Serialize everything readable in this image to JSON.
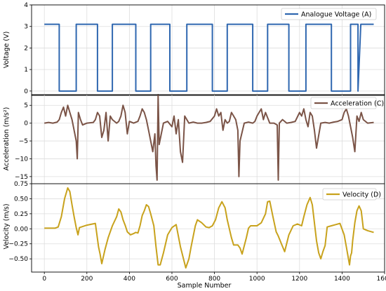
{
  "chart_data": [
    {
      "type": "line",
      "title": "",
      "ylabel": "Voltage (V)",
      "xlabel": "",
      "xlim": [
        -60,
        1600
      ],
      "ylim": [
        -0.2,
        4
      ],
      "yticks": [
        0,
        1,
        2,
        3,
        4
      ],
      "grid": true,
      "legend_position": "top-right",
      "series": [
        {
          "name": "Analogue Voltage (A)",
          "color": "#2f67b0",
          "x": [
            0,
            70,
            70,
            150,
            150,
            250,
            250,
            320,
            320,
            430,
            430,
            500,
            500,
            590,
            590,
            670,
            670,
            790,
            790,
            860,
            860,
            980,
            980,
            1050,
            1050,
            1150,
            1150,
            1230,
            1230,
            1350,
            1350,
            1440,
            1440,
            1475,
            1475,
            1488,
            1488,
            1549
          ],
          "y": [
            3.1,
            3.1,
            0,
            0,
            3.1,
            3.1,
            0,
            0,
            3.1,
            3.1,
            0,
            0,
            3.1,
            3.1,
            0,
            0,
            3.1,
            3.1,
            0,
            0,
            3.1,
            3.1,
            0,
            0,
            3.1,
            3.1,
            0,
            0,
            3.1,
            3.1,
            0,
            0,
            3.1,
            3.1,
            0,
            3.1,
            3.1,
            3.1
          ]
        }
      ]
    },
    {
      "type": "line",
      "title": "",
      "ylabel": "Acceleration (m/s²)",
      "xlabel": "",
      "xlim": [
        -60,
        1600
      ],
      "ylim": [
        -17,
        8
      ],
      "yticks": [
        5,
        0,
        -5,
        -10,
        -15
      ],
      "grid": true,
      "legend_position": "top-right",
      "series": [
        {
          "name": "Acceleration (C)",
          "color": "#7b5447",
          "x": [
            0,
            20,
            40,
            60,
            70,
            80,
            90,
            100,
            110,
            120,
            130,
            140,
            150,
            155,
            160,
            170,
            180,
            200,
            230,
            240,
            250,
            260,
            270,
            280,
            290,
            300,
            310,
            320,
            340,
            350,
            360,
            370,
            380,
            390,
            400,
            420,
            440,
            450,
            460,
            470,
            480,
            490,
            500,
            510,
            520,
            525,
            530,
            535,
            540,
            560,
            580,
            600,
            610,
            620,
            630,
            640,
            650,
            660,
            670,
            680,
            700,
            720,
            740,
            760,
            780,
            800,
            810,
            820,
            830,
            840,
            850,
            860,
            870,
            880,
            890,
            900,
            910,
            915,
            920,
            940,
            960,
            980,
            990,
            1000,
            1010,
            1020,
            1030,
            1040,
            1060,
            1080,
            1095,
            1100,
            1105,
            1120,
            1140,
            1160,
            1180,
            1200,
            1210,
            1220,
            1230,
            1240,
            1250,
            1260,
            1270,
            1280,
            1300,
            1320,
            1340,
            1360,
            1380,
            1400,
            1410,
            1420,
            1430,
            1440,
            1450,
            1460,
            1470,
            1480,
            1490,
            1500,
            1520,
            1549
          ],
          "y": [
            0,
            0.2,
            0,
            0.3,
            1,
            3,
            4.5,
            2,
            5,
            3,
            1,
            -2,
            -5,
            -10,
            3,
            1,
            -0.5,
            0,
            0.2,
            1,
            3,
            2,
            -4,
            -2,
            3,
            -5,
            2,
            1,
            0,
            0.5,
            2,
            5,
            3,
            -3,
            0.5,
            0,
            0.5,
            2,
            4,
            3,
            1,
            -2,
            -5,
            -8,
            -3,
            -12,
            -16,
            8,
            -6,
            0,
            0.5,
            -1,
            2,
            -3,
            1,
            -8,
            -11,
            2,
            1,
            0,
            0.3,
            0,
            0,
            0.2,
            0.5,
            2,
            4,
            2,
            3,
            -2,
            1,
            0,
            0.5,
            3,
            2,
            1,
            -2,
            -15,
            -5,
            0,
            0.3,
            0,
            0.5,
            2,
            3,
            4,
            1,
            3,
            0,
            0,
            -0.5,
            -16,
            0,
            1,
            0,
            0.2,
            0.5,
            3,
            2,
            4,
            1,
            -1,
            3,
            2,
            -2,
            -7,
            0,
            0.2,
            0,
            0.3,
            0.5,
            1,
            3,
            4,
            2,
            -1,
            -4,
            -8,
            2,
            0.5,
            3,
            1,
            0,
            0.2
          ]
        }
      ]
    },
    {
      "type": "line",
      "title": "",
      "ylabel": "Velocity (m/s)",
      "xlabel": "Sample Number",
      "xlim": [
        -60,
        1600
      ],
      "ylim": [
        -0.72,
        0.75
      ],
      "xticks": [
        0,
        200,
        400,
        600,
        800,
        1000,
        1200,
        1400,
        1600
      ],
      "yticks": [
        0.75,
        0.5,
        0.25,
        0.0,
        -0.25,
        -0.5
      ],
      "grid": true,
      "legend_position": "top-right",
      "series": [
        {
          "name": "Velocity (D)",
          "color": "#c8a21c",
          "x": [
            0,
            50,
            65,
            80,
            95,
            110,
            120,
            130,
            140,
            150,
            158,
            165,
            200,
            240,
            255,
            262,
            270,
            285,
            300,
            320,
            340,
            350,
            360,
            370,
            380,
            390,
            405,
            420,
            430,
            440,
            450,
            460,
            470,
            480,
            490,
            500,
            515,
            525,
            535,
            545,
            560,
            580,
            600,
            620,
            640,
            665,
            680,
            690,
            710,
            720,
            740,
            760,
            775,
            790,
            805,
            820,
            835,
            850,
            860,
            870,
            880,
            890,
            910,
            920,
            930,
            950,
            960,
            970,
            1000,
            1020,
            1040,
            1050,
            1060,
            1075,
            1090,
            1100,
            1115,
            1130,
            1150,
            1170,
            1190,
            1210,
            1220,
            1235,
            1250,
            1260,
            1270,
            1280,
            1290,
            1300,
            1310,
            1320,
            1330,
            1350,
            1370,
            1390,
            1410,
            1420,
            1430,
            1435,
            1440,
            1445,
            1450,
            1460,
            1470,
            1480,
            1490,
            1500,
            1520,
            1549
          ],
          "y": [
            0.01,
            0.01,
            0.03,
            0.2,
            0.5,
            0.68,
            0.62,
            0.4,
            0.2,
            0.02,
            -0.1,
            0.02,
            0.06,
            0.09,
            -0.3,
            -0.42,
            -0.58,
            -0.35,
            -0.15,
            0.05,
            0.2,
            0.33,
            0.28,
            0.15,
            0.06,
            -0.05,
            -0.1,
            -0.08,
            -0.06,
            -0.07,
            0.05,
            0.22,
            0.3,
            0.4,
            0.37,
            0.25,
            0.05,
            -0.3,
            -0.6,
            -0.6,
            -0.4,
            -0.1,
            0.02,
            0.07,
            -0.3,
            -0.65,
            -0.5,
            -0.3,
            0.05,
            0.15,
            0.1,
            0.03,
            0.02,
            0.05,
            0.15,
            0.35,
            0.45,
            0.35,
            0.15,
            0.0,
            -0.15,
            -0.27,
            -0.27,
            -0.32,
            -0.42,
            -0.15,
            0.01,
            0.05,
            0.05,
            0.1,
            0.25,
            0.45,
            0.46,
            0.2,
            -0.05,
            -0.12,
            -0.25,
            -0.38,
            -0.1,
            0.05,
            0.08,
            0.05,
            0.2,
            0.4,
            0.52,
            0.4,
            0.1,
            -0.2,
            -0.4,
            -0.5,
            -0.38,
            -0.28,
            0.03,
            0.05,
            0.07,
            0.09,
            -0.1,
            -0.3,
            -0.5,
            -0.6,
            -0.45,
            -0.4,
            -0.2,
            0.1,
            0.3,
            0.38,
            0.3,
            0.0,
            -0.03,
            -0.06
          ]
        }
      ]
    }
  ]
}
